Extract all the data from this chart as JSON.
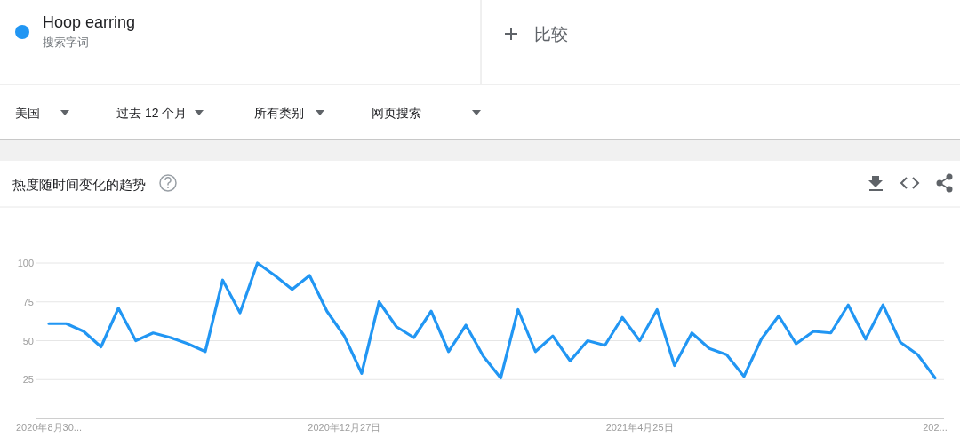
{
  "chart_data": {
    "type": "line",
    "title": "热度随时间变化的趋势",
    "subtitle": "搜索字词",
    "annotations": [
      "比较",
      "美国",
      "过去 12 个月",
      "所有类别",
      "网页搜索"
    ],
    "categories": [
      "2020年8月30...",
      null,
      null,
      null,
      null,
      null,
      null,
      null,
      null,
      null,
      null,
      null,
      null,
      null,
      null,
      null,
      null,
      "2020年12月27日",
      null,
      null,
      null,
      null,
      null,
      null,
      null,
      null,
      null,
      null,
      null,
      null,
      null,
      null,
      null,
      null,
      "2021年4月25日",
      null,
      null,
      null,
      null,
      null,
      null,
      null,
      null,
      null,
      null,
      null,
      null,
      null,
      null,
      null,
      null,
      "202..."
    ],
    "series": [
      {
        "name": "Hoop earring",
        "color": "#2196f3",
        "values": [
          61,
          61,
          56,
          46,
          71,
          50,
          55,
          52,
          48,
          43,
          89,
          68,
          100,
          92,
          83,
          92,
          69,
          53,
          29,
          75,
          59,
          52,
          69,
          43,
          60,
          40,
          26,
          70,
          43,
          53,
          37,
          50,
          47,
          65,
          50,
          70,
          34,
          55,
          45,
          41,
          27,
          51,
          66,
          48,
          56,
          55,
          73,
          51,
          73,
          49,
          41,
          26
        ]
      }
    ],
    "ylim": [
      0,
      100
    ],
    "yticks": [
      25,
      50,
      75,
      100
    ],
    "grid": "y",
    "legend": "top left",
    "line_style": "solid",
    "marker": "none"
  }
}
